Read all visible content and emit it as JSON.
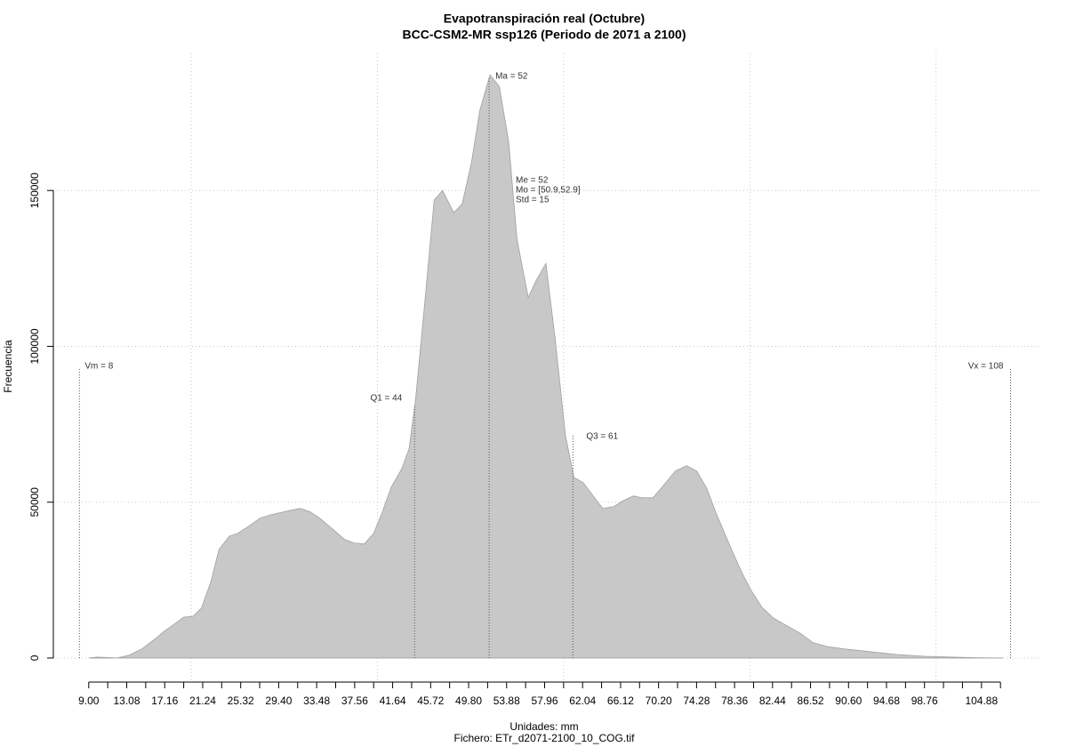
{
  "chart_data": {
    "type": "area",
    "title": "Evapotranspiración real (Octubre)",
    "subtitle": "BCC-CSM2-MR ssp126 (Periodo de 2071 a 2100)",
    "x_label": "Unidades: mm",
    "caption": "Fichero: ETr_d2071-2100_10_COG.tif",
    "y_label": "Frecuencia",
    "color": "#c8c8c8",
    "grid": true,
    "xlim": [
      5.2,
      111.2
    ],
    "ylim": [
      -8000,
      194000
    ],
    "yticks": [
      0,
      50000,
      100000,
      150000
    ],
    "xgrid": [
      20,
      40,
      60,
      80,
      100
    ],
    "xticks": [
      {
        "value": 9,
        "label": "9.00"
      },
      {
        "value": 13.08,
        "label": "13.08"
      },
      {
        "value": 17.16,
        "label": "17.16"
      },
      {
        "value": 21.24,
        "label": "21.24"
      },
      {
        "value": 25.32,
        "label": "25.32"
      },
      {
        "value": 29.4,
        "label": "29.40"
      },
      {
        "value": 33.48,
        "label": "33.48"
      },
      {
        "value": 37.56,
        "label": "37.56"
      },
      {
        "value": 41.64,
        "label": "41.64"
      },
      {
        "value": 45.72,
        "label": "45.72"
      },
      {
        "value": 49.8,
        "label": "49.80"
      },
      {
        "value": 53.88,
        "label": "53.88"
      },
      {
        "value": 57.96,
        "label": "57.96"
      },
      {
        "value": 62.04,
        "label": "62.04"
      },
      {
        "value": 66.12,
        "label": "66.12"
      },
      {
        "value": 70.2,
        "label": "70.20"
      },
      {
        "value": 74.28,
        "label": "74.28"
      },
      {
        "value": 78.36,
        "label": "78.36"
      },
      {
        "value": 82.44,
        "label": "82.44"
      },
      {
        "value": 86.52,
        "label": "86.52"
      },
      {
        "value": 90.6,
        "label": "90.60"
      },
      {
        "value": 94.68,
        "label": "94.68"
      },
      {
        "value": 98.76,
        "label": "98.76"
      },
      {
        "value": 104.88,
        "label": "104.88"
      }
    ],
    "xminor_ticks": [
      11.04,
      15.12,
      19.2,
      23.28,
      27.36,
      31.44,
      35.52,
      39.6,
      43.68,
      47.76,
      51.84,
      55.92,
      60,
      64.08,
      68.16,
      72.24,
      76.32,
      80.4,
      84.48,
      88.56,
      92.64,
      96.72,
      100.8,
      102.84,
      106.92
    ],
    "x": [
      9,
      10,
      12,
      13.3,
      14.7,
      16.2,
      17.1,
      18.3,
      19.2,
      20.2,
      21.1,
      22.1,
      23,
      24.1,
      25,
      26.2,
      27.4,
      28.6,
      29.5,
      30.7,
      31.7,
      32.8,
      33.8,
      35.3,
      36.5,
      37.5,
      38.6,
      39.6,
      40.5,
      41.5,
      42.6,
      43.4,
      44.1,
      45.1,
      46.1,
      47,
      48.2,
      49.1,
      50.1,
      51,
      52.1,
      53.1,
      54.1,
      55,
      56.2,
      57.1,
      58.1,
      59.1,
      60.2,
      61.1,
      62.1,
      63.1,
      64.2,
      65.4,
      66.3,
      67.5,
      68.4,
      69.6,
      70.6,
      72,
      73.2,
      74.3,
      75.4,
      76.3,
      77.3,
      78.2,
      79.2,
      80.2,
      81.3,
      82.5,
      84,
      85.4,
      86.8,
      88.3,
      90.2,
      93,
      95.9,
      98.8,
      101.6,
      104.5,
      107.2
    ],
    "values": [
      0,
      300,
      0,
      860,
      2900,
      6300,
      8600,
      11100,
      13100,
      13400,
      16000,
      24300,
      34900,
      39100,
      40000,
      42300,
      44900,
      46000,
      46600,
      47400,
      48000,
      46900,
      44900,
      41100,
      38000,
      36900,
      36600,
      40000,
      46600,
      54900,
      60600,
      67100,
      82900,
      114300,
      146900,
      150000,
      142900,
      145700,
      158900,
      175700,
      187100,
      183400,
      165700,
      134300,
      115700,
      121400,
      126600,
      102300,
      71400,
      58000,
      56300,
      52300,
      48000,
      48600,
      50300,
      52000,
      51400,
      51400,
      54900,
      60000,
      61700,
      60000,
      54300,
      47100,
      40000,
      33700,
      27100,
      21400,
      16300,
      12900,
      10300,
      8000,
      4900,
      3700,
      2900,
      2000,
      1100,
      570,
      290,
      100,
      0
    ],
    "markers": [
      {
        "label": "Vm = 8",
        "value": 8
      },
      {
        "label": "Q1 = 44",
        "value": 44
      },
      {
        "label": "Ma = 52",
        "value": 52
      },
      {
        "label": "Q3 = 61",
        "value": 61
      },
      {
        "label": "Vx = 108",
        "value": 108
      }
    ],
    "stats": [
      "Me = 52",
      "Mo = [50.9,52.9]",
      "Std = 15"
    ]
  }
}
